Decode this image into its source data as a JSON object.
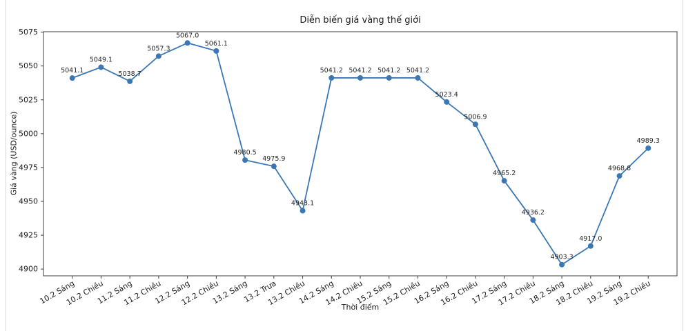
{
  "page": {
    "background": "#ffffff",
    "border_color": "#d6d6d6"
  },
  "chart_data": {
    "type": "line",
    "title": "Diễn biến giá vàng thế giới",
    "xlabel": "Thời điểm",
    "ylabel": "Giá vàng (USD/ounce)",
    "categories": [
      "10.2 Sáng",
      "10.2 Chiều",
      "11.2 Sáng",
      "11.2 Chiều",
      "12.2 Sáng",
      "12.2 Chiều",
      "13.2 Sáng",
      "13.2 Trưa",
      "13.2 Chiều",
      "14.2 Sáng",
      "14.2 Chiều",
      "15.2 Sáng",
      "15.2 Chiều",
      "16.2 Sáng",
      "16.2 Chiều",
      "17.2 Sáng",
      "17.2 Chiều",
      "18.2 Sáng",
      "18.2 Chiều",
      "19.2 Sáng",
      "19.2 Chiều"
    ],
    "values": [
      5041.1,
      5049.1,
      5038.7,
      5057.3,
      5067.0,
      5061.1,
      4980.5,
      4975.9,
      4943.1,
      5041.2,
      5041.2,
      5041.2,
      5041.2,
      5023.4,
      5006.9,
      4965.2,
      4936.2,
      4903.3,
      4917.0,
      4968.8,
      4989.3
    ],
    "yticks": [
      4900,
      4925,
      4950,
      4975,
      5000,
      5025,
      5050,
      5075
    ],
    "ylim": [
      4895.0,
      5075.3
    ],
    "grid": false,
    "legend": null,
    "line_color": "#3b77b4",
    "marker_color": "#3b77b4",
    "axis_color": "#3c3c3c",
    "tick_label_color": "#1c1c1c",
    "point_label_color": "#262626",
    "x_tick_rotation_deg": 30
  }
}
